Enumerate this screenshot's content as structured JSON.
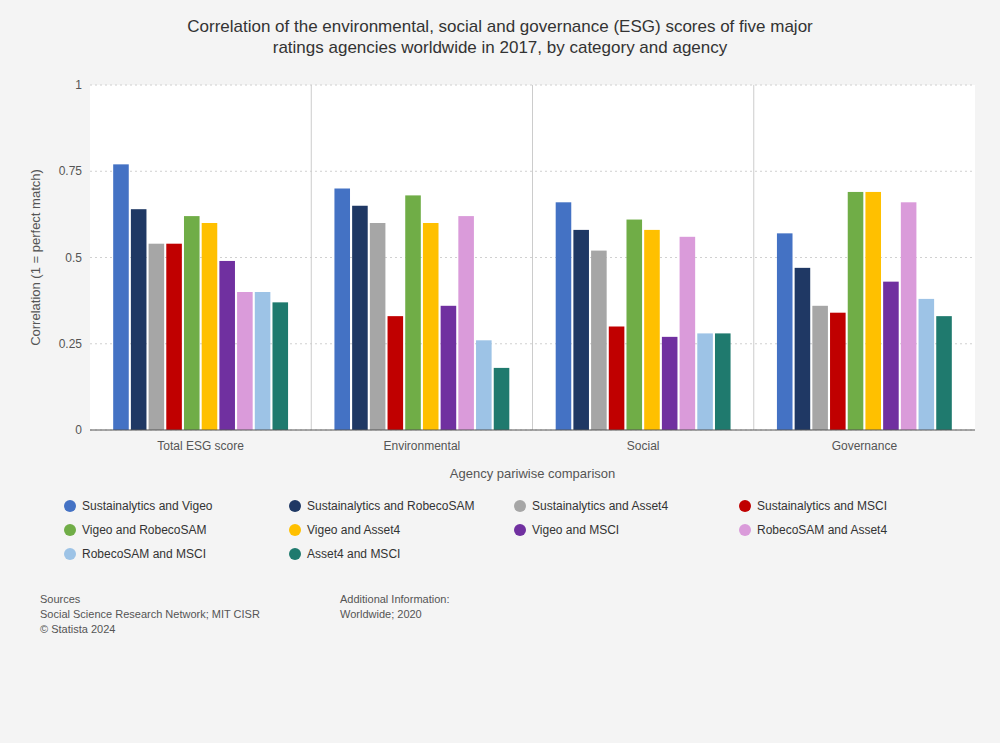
{
  "chart_data": {
    "type": "bar",
    "title": "Correlation of the environmental, social and governance (ESG) scores of five major\nratings agencies worldwide in 2017, by category and agency",
    "xlabel": "Agency pariwise comparison",
    "ylabel": "Correlation (1 = perfect match)",
    "categories": [
      "Total ESG score",
      "Environmental",
      "Social",
      "Governance"
    ],
    "series": [
      {
        "name": "Sustainalytics and Vigeo",
        "color": "#4472C4",
        "values": [
          0.77,
          0.7,
          0.66,
          0.57
        ]
      },
      {
        "name": "Sustainalytics and RobecoSAM",
        "color": "#1F3864",
        "values": [
          0.64,
          0.65,
          0.58,
          0.47
        ]
      },
      {
        "name": "Sustainalytics and Asset4",
        "color": "#A6A6A6",
        "values": [
          0.54,
          0.6,
          0.52,
          0.36
        ]
      },
      {
        "name": "Sustainalytics and MSCI",
        "color": "#C00000",
        "values": [
          0.54,
          0.33,
          0.3,
          0.34
        ]
      },
      {
        "name": "Vigeo and RobecoSAM",
        "color": "#70AD47",
        "values": [
          0.62,
          0.68,
          0.61,
          0.69
        ]
      },
      {
        "name": "Vigeo and Asset4",
        "color": "#FFC000",
        "values": [
          0.6,
          0.6,
          0.58,
          0.69
        ]
      },
      {
        "name": "Vigeo and MSCI",
        "color": "#7030A0",
        "values": [
          0.49,
          0.36,
          0.27,
          0.43
        ]
      },
      {
        "name": "RobecoSAM and Asset4",
        "color": "#DA9BDA",
        "values": [
          0.4,
          0.62,
          0.56,
          0.66
        ]
      },
      {
        "name": "RobecoSAM and MSCI",
        "color": "#9DC3E6",
        "values": [
          0.4,
          0.26,
          0.28,
          0.38
        ]
      },
      {
        "name": "Asset4 and MSCI",
        "color": "#1F7A6E",
        "values": [
          0.37,
          0.18,
          0.28,
          0.33
        ]
      }
    ],
    "ylim": [
      0,
      1.0
    ],
    "yticks": [
      0,
      0.25,
      0.5,
      0.75,
      1
    ],
    "grid": true,
    "legend": "bottom",
    "annotations": [
      "Sources\nSocial Science Research Network; MIT CISR\n© Statista 2024",
      "Additional Information:\nWorldwide; 2020"
    ]
  }
}
